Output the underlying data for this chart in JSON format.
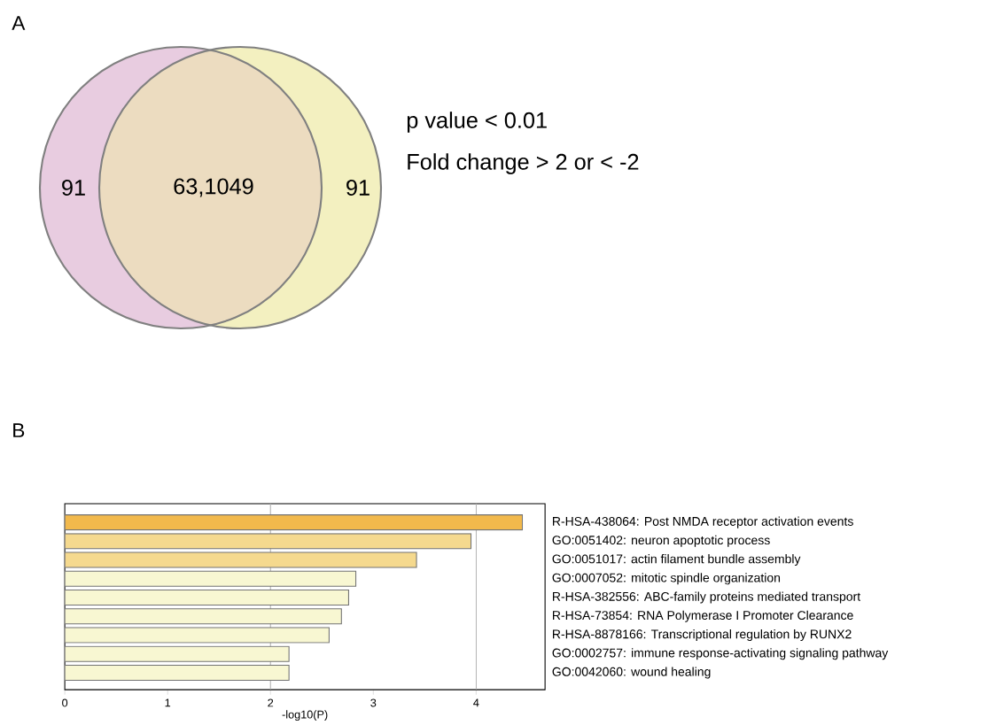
{
  "chart_data": [
    {
      "type": "other",
      "title": "A",
      "annotations": [
        "91",
        "63,1049",
        "91",
        "p value < 0.01",
        "Fold change > 2 or < -2"
      ]
    },
    {
      "type": "bar",
      "title": "B",
      "orientation": "horizontal",
      "xlabel": "-log10(P)",
      "categories": [
        "R-HSA-438064: Post NMDA receptor activation events",
        "GO:0051402: neuron apoptotic process",
        "GO:0051017: actin filament bundle assembly",
        "GO:0007052: mitotic spindle organization",
        "R-HSA-382556: ABC-family proteins mediated transport",
        "R-HSA-73854: RNA Polymerase I Promoter Clearance",
        "R-HSA-8878166: Transcriptional regulation by RUNX2",
        "GO:0002757: immune response-activating signaling pathway",
        "GO:0042060: wound healing"
      ],
      "values": [
        4.45,
        3.95,
        3.42,
        2.83,
        2.76,
        2.69,
        2.57,
        2.18,
        2.18
      ],
      "colors": [
        "#f2b94c",
        "#f5d98e",
        "#f5d98e",
        "#f8f7d2",
        "#f8f7d2",
        "#f8f7d2",
        "#f8f7d2",
        "#f8f7d2",
        "#f8f7d2"
      ],
      "xlim": [
        0,
        4.67
      ],
      "xticks": [
        0,
        1,
        2,
        3,
        4
      ],
      "ref_lines": [
        {
          "axis": "x",
          "value": 2,
          "color": "#b0b0b0"
        },
        {
          "axis": "x",
          "value": 4,
          "color": "#b0b0b0"
        }
      ]
    }
  ]
}
